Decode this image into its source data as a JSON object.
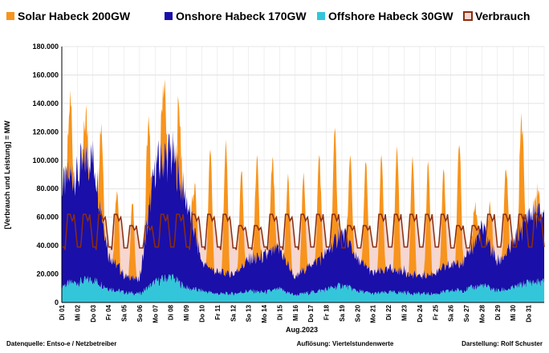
{
  "chart_data": {
    "type": "area",
    "title": "",
    "xlabel": "Aug.2023",
    "ylabel": "[Verbrauch und Leistung] = MW",
    "ylim": [
      0,
      180000
    ],
    "yticks": [
      "0",
      "20.000",
      "40.000",
      "60.000",
      "80.000",
      "100.000",
      "120.000",
      "140.000",
      "160.000",
      "180.000"
    ],
    "ytick_values": [
      0,
      20000,
      40000,
      60000,
      80000,
      100000,
      120000,
      140000,
      160000,
      180000
    ],
    "xrange": [
      0,
      31
    ],
    "xticks": [
      "Di 01",
      "Mi 02",
      "Do 03",
      "Fr 04",
      "Sa 05",
      "So 06",
      "Mo 07",
      "Di 08",
      "Mi 09",
      "Do 10",
      "Fr 11",
      "Sa 12",
      "So 13",
      "Mo 14",
      "Di 15",
      "Mi 16",
      "Do 17",
      "Fr 18",
      "Sa 19",
      "So 20",
      "Mo 21",
      "Di 22",
      "Mi 23",
      "Do 24",
      "Fr 25",
      "Sa 26",
      "So 27",
      "Mo 28",
      "Di 29",
      "Mi 30",
      "Do 31"
    ],
    "legend_position": "top",
    "grid": true,
    "series": [
      {
        "name": "Solar Habeck 200GW",
        "kind": "stacked-area",
        "color": "#f7941d",
        "daily_peak_total": [
          135000,
          121000,
          164000,
          87000,
          72000,
          82000,
          150000,
          155000,
          104000,
          112000,
          113000,
          88000,
          99000,
          96000,
          98000,
          84000,
          99000,
          109000,
          110000,
          103000,
          100000,
          110000,
          105000,
          97000,
          88000,
          113000,
          57000,
          80000,
          89000,
          119000,
          76000
        ]
      },
      {
        "name": "Onshore Habeck 170GW",
        "kind": "stacked-area",
        "color": "#1a0fa8",
        "daily_mean": [
          70000,
          77000,
          88000,
          25000,
          12000,
          10000,
          80000,
          88000,
          62000,
          20000,
          15000,
          14000,
          22000,
          25000,
          28000,
          12000,
          20000,
          25000,
          38000,
          22000,
          14000,
          16000,
          15000,
          12000,
          15000,
          18000,
          22000,
          40000,
          20000,
          30000,
          48000
        ]
      },
      {
        "name": "Offshore Habeck 30GW",
        "kind": "stacked-area",
        "color": "#33c6db",
        "daily_mean": [
          12000,
          14000,
          16000,
          10000,
          7000,
          6000,
          14000,
          18000,
          10000,
          8000,
          6000,
          6000,
          8000,
          7000,
          9000,
          5000,
          7000,
          9000,
          12000,
          8000,
          6000,
          7000,
          7000,
          6000,
          6000,
          8000,
          9000,
          12000,
          8000,
          10000,
          14000
        ]
      },
      {
        "name": "Verbrauch",
        "kind": "line",
        "color": "#8b2d0e",
        "fill": "#f6d6d0",
        "weekday_peak": 62000,
        "weekend_peak": 54000,
        "night_min": 37000
      }
    ],
    "footer": {
      "source": "Datenquelle: Entso-e  / Netzbetreiber",
      "resolution": "Auflösung: Viertelstundenwerte",
      "author": "Darstellung:  Rolf Schuster"
    }
  }
}
